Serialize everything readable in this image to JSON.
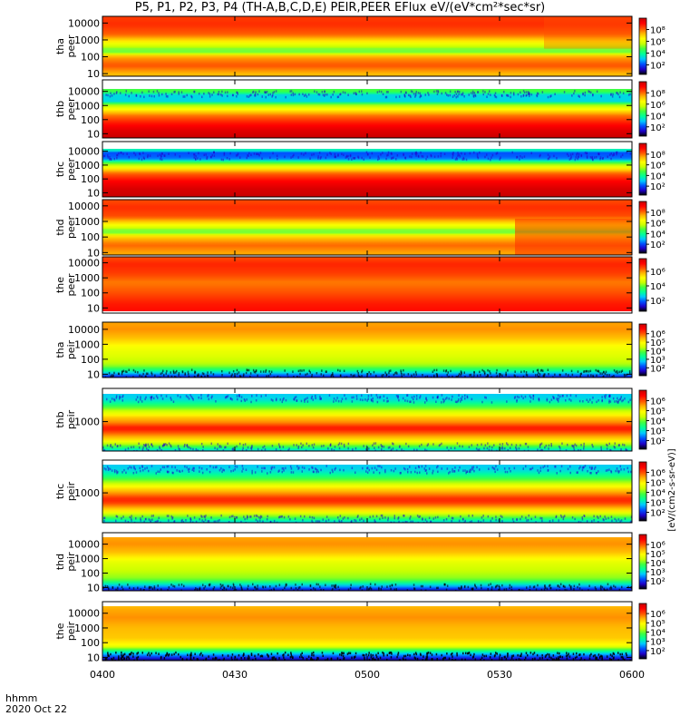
{
  "title": "P5, P1, P2, P3, P4 (TH-A,B,C,D,E) PEIR,PEER EFlux eV/(eV*cm²*sec*sr)",
  "footer": {
    "line1": "hhmm",
    "line2": "2020 Oct 22"
  },
  "colorbar_unit": "[eV/(cm2-s-sr-eV)]",
  "colors": {
    "colormap": [
      "#000000",
      "#1e00c8",
      "#0050ff",
      "#00c8ff",
      "#00ff9a",
      "#40ff40",
      "#c8ff00",
      "#ffff00",
      "#ffb400",
      "#ff5000",
      "#ff0000",
      "#c80000"
    ],
    "separator": "#ffffff",
    "gap_band": "#ffffff"
  },
  "chart_data": [
    {
      "type": "heatmap",
      "name": "tha_peer",
      "ylabel": "tha\npeer",
      "yscale": "log",
      "yticks": [
        "10",
        "100",
        "1000",
        "10000"
      ],
      "ylim": [
        7,
        25000
      ],
      "xlim": [
        "0400",
        "0600"
      ],
      "xticks": [
        "0400",
        "0430",
        "0500",
        "0530",
        "0600"
      ],
      "colorbar": {
        "scale": "log",
        "ticks": [
          "10²",
          "10⁴",
          "10⁶",
          "10⁸"
        ]
      },
      "spectrum": [
        [
          10,
          0.72
        ],
        [
          30,
          0.82
        ],
        [
          100,
          0.74
        ],
        [
          200,
          0.45
        ],
        [
          500,
          0.58
        ],
        [
          2000,
          0.8
        ],
        [
          8000,
          0.86
        ],
        [
          25000,
          0.84
        ]
      ],
      "notes": "line near 200-400 eV; intensity rises toward 0600"
    },
    {
      "type": "heatmap",
      "name": "thb_peer",
      "ylabel": "thb\npeer",
      "yscale": "log",
      "yticks": [
        "10",
        "100",
        "1000",
        "10000"
      ],
      "ylim": [
        5,
        15000
      ],
      "xlim": [
        "0400",
        "0600"
      ],
      "xticks": [
        "0400",
        "0430",
        "0500",
        "0530",
        "0600"
      ],
      "colorbar": {
        "scale": "log",
        "ticks": [
          "10²",
          "10⁴",
          "10⁶",
          "10⁸"
        ]
      },
      "spectrum": [
        [
          5,
          1.0
        ],
        [
          20,
          0.95
        ],
        [
          60,
          0.88
        ],
        [
          200,
          0.78
        ],
        [
          600,
          0.62
        ],
        [
          1200,
          0.5
        ],
        [
          2000,
          0.3
        ],
        [
          6000,
          0.3
        ],
        [
          9000,
          0.45
        ]
      ],
      "notes": "empty band above 10000 eV"
    },
    {
      "type": "heatmap",
      "name": "thc_peer",
      "ylabel": "thc\npeer",
      "yscale": "log",
      "yticks": [
        "10",
        "100",
        "1000",
        "10000"
      ],
      "ylim": [
        5,
        15000
      ],
      "xlim": [
        "0400",
        "0600"
      ],
      "xticks": [
        "0400",
        "0430",
        "0500",
        "0530",
        "0600"
      ],
      "colorbar": {
        "scale": "log",
        "ticks": [
          "10²",
          "10⁴",
          "10⁶",
          "10⁸"
        ]
      },
      "spectrum": [
        [
          5,
          1.0
        ],
        [
          20,
          0.97
        ],
        [
          80,
          0.9
        ],
        [
          250,
          0.8
        ],
        [
          700,
          0.62
        ],
        [
          1500,
          0.45
        ],
        [
          3000,
          0.2
        ],
        [
          8000,
          0.18
        ],
        [
          12000,
          0.35
        ]
      ]
    },
    {
      "type": "heatmap",
      "name": "thd_peer",
      "ylabel": "thd\npeer",
      "yscale": "log",
      "yticks": [
        "10",
        "100",
        "1000",
        "10000"
      ],
      "ylim": [
        7,
        25000
      ],
      "xlim": [
        "0400",
        "0600"
      ],
      "xticks": [
        "0400",
        "0430",
        "0500",
        "0530",
        "0600"
      ],
      "colorbar": {
        "scale": "log",
        "ticks": [
          "10²",
          "10⁴",
          "10⁶",
          "10⁸"
        ]
      },
      "spectrum": [
        [
          10,
          0.74
        ],
        [
          30,
          0.8
        ],
        [
          100,
          0.7
        ],
        [
          200,
          0.47
        ],
        [
          500,
          0.6
        ],
        [
          2000,
          0.82
        ],
        [
          8000,
          0.86
        ],
        [
          25000,
          0.82
        ]
      ],
      "notes": "step change near 0527; red low-energy region after"
    },
    {
      "type": "heatmap",
      "name": "the_peer",
      "ylabel": "the\npeer",
      "yscale": "log",
      "yticks": [
        "10",
        "100",
        "1000",
        "10000"
      ],
      "ylim": [
        6,
        25000
      ],
      "xlim": [
        "0400",
        "0600"
      ],
      "xticks": [
        "0400",
        "0430",
        "0500",
        "0530",
        "0600"
      ],
      "colorbar": {
        "scale": "log",
        "ticks": [
          "10²",
          "10⁴",
          "10⁶"
        ]
      },
      "spectrum": [
        [
          6,
          0.9
        ],
        [
          20,
          0.88
        ],
        [
          100,
          0.82
        ],
        [
          500,
          0.78
        ],
        [
          2000,
          0.84
        ],
        [
          8000,
          0.87
        ],
        [
          25000,
          0.82
        ]
      ]
    },
    {
      "type": "heatmap",
      "name": "tha_peir",
      "ylabel": "tha\npeir",
      "yscale": "log",
      "yticks": [
        "10",
        "100",
        "1000",
        "10000"
      ],
      "ylim": [
        6,
        30000
      ],
      "xlim": [
        "0400",
        "0600"
      ],
      "xticks": [
        "0400",
        "0430",
        "0500",
        "0530",
        "0600"
      ],
      "colorbar": {
        "scale": "log",
        "ticks": [
          "10²",
          "10³",
          "10⁴",
          "10⁵",
          "10⁶"
        ]
      },
      "spectrum": [
        [
          6,
          0.1
        ],
        [
          15,
          0.35
        ],
        [
          40,
          0.52
        ],
        [
          150,
          0.58
        ],
        [
          600,
          0.62
        ],
        [
          3000,
          0.72
        ],
        [
          10000,
          0.76
        ],
        [
          30000,
          0.74
        ]
      ]
    },
    {
      "type": "heatmap",
      "name": "thb_peir",
      "ylabel": "thb\npeir",
      "yscale": "log",
      "yticks": [
        "1000"
      ],
      "ylim": [
        150,
        6000
      ],
      "xlim": [
        "0400",
        "0600"
      ],
      "xticks": [
        "0400",
        "0430",
        "0500",
        "0530",
        "0600"
      ],
      "colorbar": {
        "scale": "log",
        "ticks": [
          "10²",
          "10³",
          "10⁴",
          "10⁵",
          "10⁶"
        ]
      },
      "spectrum": [
        [
          150,
          0.28
        ],
        [
          220,
          0.5
        ],
        [
          320,
          0.68
        ],
        [
          500,
          0.82
        ],
        [
          650,
          0.9
        ],
        [
          900,
          0.78
        ],
        [
          1300,
          0.7
        ],
        [
          2000,
          0.55
        ],
        [
          3000,
          0.4
        ],
        [
          4200,
          0.3
        ],
        [
          6000,
          0.28
        ]
      ]
    },
    {
      "type": "heatmap",
      "name": "thc_peir",
      "ylabel": "thc\npeir",
      "yscale": "log",
      "yticks": [
        "1000"
      ],
      "ylim": [
        150,
        6000
      ],
      "xlim": [
        "0400",
        "0600"
      ],
      "xticks": [
        "0400",
        "0430",
        "0500",
        "0530",
        "0600"
      ],
      "colorbar": {
        "scale": "log",
        "ticks": [
          "10²",
          "10³",
          "10⁴",
          "10⁵",
          "10⁶"
        ]
      },
      "spectrum": [
        [
          150,
          0.28
        ],
        [
          220,
          0.48
        ],
        [
          320,
          0.66
        ],
        [
          500,
          0.82
        ],
        [
          650,
          0.88
        ],
        [
          900,
          0.78
        ],
        [
          1300,
          0.68
        ],
        [
          2000,
          0.52
        ],
        [
          3000,
          0.38
        ],
        [
          4200,
          0.3
        ],
        [
          6000,
          0.28
        ]
      ]
    },
    {
      "type": "heatmap",
      "name": "thd_peir",
      "ylabel": "thd\npeir",
      "yscale": "log",
      "yticks": [
        "10",
        "100",
        "1000",
        "10000"
      ],
      "ylim": [
        6,
        30000
      ],
      "xlim": [
        "0400",
        "0600"
      ],
      "xticks": [
        "0400",
        "0430",
        "0500",
        "0530",
        "0600"
      ],
      "colorbar": {
        "scale": "log",
        "ticks": [
          "10²",
          "10³",
          "10⁴",
          "10⁵",
          "10⁶"
        ]
      },
      "spectrum": [
        [
          6,
          0.08
        ],
        [
          15,
          0.3
        ],
        [
          40,
          0.5
        ],
        [
          150,
          0.55
        ],
        [
          600,
          0.6
        ],
        [
          3000,
          0.72
        ],
        [
          10000,
          0.76
        ],
        [
          30000,
          0.74
        ]
      ]
    },
    {
      "type": "heatmap",
      "name": "the_peir",
      "ylabel": "the\npeir",
      "yscale": "log",
      "yticks": [
        "10",
        "100",
        "1000",
        "10000"
      ],
      "ylim": [
        6,
        30000
      ],
      "xlim": [
        "0400",
        "0600"
      ],
      "xticks": [
        "0400",
        "0430",
        "0500",
        "0530",
        "0600"
      ],
      "colorbar": {
        "scale": "log",
        "ticks": [
          "10²",
          "10³",
          "10⁴",
          "10⁵",
          "10⁶"
        ]
      },
      "spectrum": [
        [
          6,
          0.04
        ],
        [
          20,
          0.3
        ],
        [
          60,
          0.62
        ],
        [
          200,
          0.7
        ],
        [
          1000,
          0.72
        ],
        [
          5000,
          0.76
        ],
        [
          15000,
          0.74
        ],
        [
          30000,
          0.72
        ]
      ]
    }
  ]
}
